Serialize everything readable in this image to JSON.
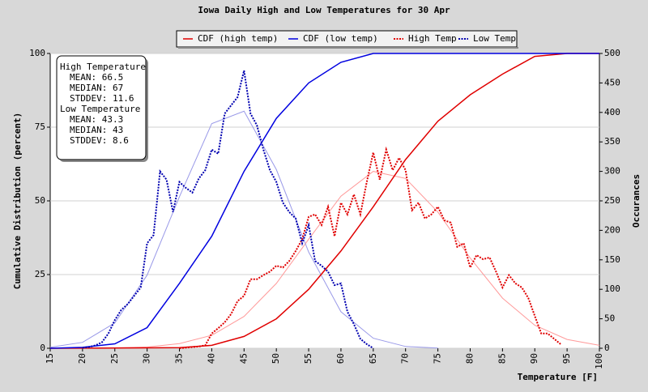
{
  "chart_data": {
    "type": "line",
    "title": "Iowa Daily High and Low Temperatures for 30 Apr",
    "x_label": "Temperature [F]",
    "y_label": "Cumulative Distribution (percent)",
    "y2_label": "Occurances",
    "xlim": [
      15,
      100
    ],
    "xticks": [
      15,
      20,
      25,
      30,
      35,
      40,
      45,
      50,
      55,
      60,
      65,
      70,
      75,
      80,
      85,
      90,
      95,
      100
    ],
    "ylim": [
      0,
      100
    ],
    "yticks": [
      0,
      25,
      50,
      75,
      100
    ],
    "y2lim": [
      0,
      500
    ],
    "y2ticks": [
      0,
      50,
      100,
      150,
      200,
      250,
      300,
      350,
      400,
      450,
      500
    ],
    "grid": true,
    "legend": "top",
    "stats": [
      {
        "title": "High Temperature",
        "lines": [
          "MEAN: 66.5",
          "MEDIAN: 67",
          "STDDEV: 11.6"
        ]
      },
      {
        "title": "Low Temperature",
        "lines": [
          "MEAN: 43.3",
          "MEDIAN: 43",
          "STDDEV: 8.6"
        ]
      }
    ],
    "series": [
      {
        "name": "CDF (high temp)",
        "color": "#e00000",
        "style": "solid",
        "axis": "y",
        "x": [
          15,
          35,
          40,
          45,
          50,
          55,
          60,
          65,
          70,
          75,
          80,
          85,
          90,
          95,
          100
        ],
        "values": [
          0,
          0.2,
          1,
          4,
          10,
          20,
          33,
          48,
          64,
          77,
          86,
          93,
          99,
          100,
          100
        ]
      },
      {
        "name": "CDF (low temp)",
        "color": "#0000e0",
        "style": "solid",
        "axis": "y",
        "x": [
          15,
          20,
          25,
          30,
          35,
          40,
          45,
          50,
          55,
          60,
          65,
          70,
          100
        ],
        "values": [
          0,
          0.3,
          1.5,
          7,
          22,
          38,
          60,
          78,
          90,
          97,
          100,
          100,
          100
        ]
      },
      {
        "name": "High Temp",
        "color": "#e00000",
        "style": "dotted",
        "axis": "y2",
        "x": [
          35,
          36,
          37,
          38,
          39,
          40,
          41,
          42,
          43,
          44,
          45,
          46,
          47,
          48,
          49,
          50,
          51,
          52,
          53,
          54,
          55,
          56,
          57,
          58,
          59,
          60,
          61,
          62,
          63,
          64,
          65,
          66,
          67,
          68,
          69,
          70,
          71,
          72,
          73,
          74,
          75,
          76,
          77,
          78,
          79,
          80,
          81,
          82,
          83,
          84,
          85,
          86,
          87,
          88,
          89,
          90,
          91,
          92,
          93,
          94
        ],
        "values": [
          0,
          1,
          2,
          3,
          5,
          25,
          34,
          44,
          58,
          80,
          89,
          117,
          117,
          124,
          130,
          140,
          137,
          148,
          165,
          185,
          223,
          227,
          209,
          240,
          190,
          247,
          227,
          261,
          227,
          282,
          332,
          286,
          337,
          302,
          323,
          302,
          234,
          247,
          220,
          227,
          240,
          217,
          213,
          172,
          178,
          137,
          158,
          151,
          154,
          130,
          103,
          124,
          110,
          103,
          85,
          55,
          25,
          25,
          16,
          7
        ]
      },
      {
        "name": "Low Temp",
        "color": "#0000b0",
        "style": "dotted",
        "axis": "y2",
        "x": [
          20,
          21,
          22,
          23,
          24,
          25,
          26,
          27,
          28,
          29,
          30,
          31,
          32,
          33,
          34,
          35,
          36,
          37,
          38,
          39,
          40,
          41,
          42,
          43,
          44,
          45,
          46,
          47,
          48,
          49,
          50,
          51,
          52,
          53,
          54,
          55,
          56,
          57,
          58,
          59,
          60,
          61,
          62,
          63,
          64,
          65
        ],
        "values": [
          1,
          2,
          5,
          10,
          25,
          48,
          65,
          75,
          89,
          103,
          178,
          192,
          300,
          286,
          231,
          282,
          272,
          264,
          288,
          302,
          337,
          330,
          398,
          412,
          426,
          471,
          398,
          378,
          337,
          302,
          282,
          247,
          231,
          220,
          178,
          209,
          148,
          140,
          130,
          107,
          110,
          62,
          41,
          16,
          7,
          0
        ]
      },
      {
        "color": "#ff9999",
        "style": "fit",
        "axis": "y2",
        "x": [
          15,
          20,
          25,
          30,
          35,
          40,
          45,
          50,
          55,
          60,
          65,
          70,
          75,
          80,
          85,
          90,
          95,
          100
        ],
        "values": [
          0,
          0.1,
          0.5,
          2,
          8,
          22,
          54,
          110,
          185,
          258,
          300,
          288,
          231,
          153,
          85,
          39,
          15,
          5
        ]
      },
      {
        "color": "#9999e8",
        "style": "fit",
        "axis": "y2",
        "x": [
          15,
          20,
          25,
          30,
          35,
          40,
          45,
          50,
          55,
          60,
          65,
          70,
          75
        ],
        "values": [
          1.8,
          10,
          43,
          124,
          257,
          381,
          402,
          303,
          163,
          62,
          17,
          3,
          0.4
        ]
      }
    ]
  }
}
